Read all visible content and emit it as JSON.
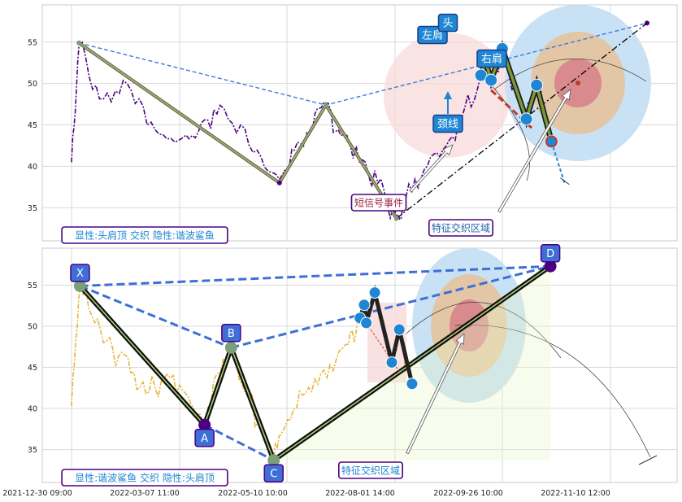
{
  "chart_data": [
    {
      "type": "line",
      "panel": "top",
      "ylim": [
        31,
        59.5
      ],
      "yticks": [
        35,
        40,
        45,
        50,
        55
      ],
      "grid": true,
      "price_color": "#4b0082",
      "pattern_points": [
        {
          "t": 0.8,
          "y": 54.9
        },
        {
          "t": 22.4,
          "y": 38.0
        },
        {
          "t": 27.4,
          "y": 47.4
        },
        {
          "t": 35.0,
          "y": 33.7
        }
      ],
      "trend_line": {
        "from": {
          "t": 0.8,
          "y": 54.9
        },
        "via": {
          "t": 27.4,
          "y": 47.4
        },
        "to": {
          "t": 62.0,
          "y": 57.3
        }
      },
      "neckline_rising": {
        "from": {
          "t": 35.0,
          "y": 33.7
        },
        "to": {
          "t": 62.0,
          "y": 57.3
        }
      },
      "head_shoulders": {
        "points": [
          {
            "t": 44.1,
            "y": 51.0
          },
          {
            "t": 44.6,
            "y": 52.7
          },
          {
            "t": 45.2,
            "y": 50.4
          },
          {
            "t": 46.4,
            "y": 54.2
          },
          {
            "t": 49.0,
            "y": 45.7
          },
          {
            "t": 50.1,
            "y": 49.8
          },
          {
            "t": 51.7,
            "y": 43.0
          }
        ],
        "projection": [
          {
            "t": 51.7,
            "y": 43.0
          },
          {
            "t": 53.1,
            "y": 38.0
          }
        ],
        "neckline": [
          {
            "t": 45.2,
            "y": 49.2
          },
          {
            "t": 49.7,
            "y": 44.5
          }
        ]
      },
      "labels": {
        "left_shoulder": "左肩",
        "head": "头",
        "right_shoulder": "右肩",
        "neckline": "颈线",
        "short_signal": "短信号事件",
        "zone": "特征交织区域",
        "legend": "显性:头肩顶 交织 隐性:谐波鲨鱼"
      },
      "colors": {
        "ellipse_outer": "#c8e1f5",
        "ellipse_mid": "#e2c6a6",
        "ellipse_inner": "#d98a8c",
        "pink_zone": "#f7dada",
        "badge_fill": "#1f86d4"
      }
    },
    {
      "type": "line",
      "panel": "bottom",
      "ylim": [
        31,
        59.5
      ],
      "yticks": [
        35,
        40,
        45,
        50,
        55
      ],
      "grid": true,
      "price_color": "#e8b43a",
      "x_ticks": [
        "2021-12-30 09:00",
        "2022-03-07 11:00",
        "2022-05-10 10:00",
        "2022-08-01 14:00",
        "2022-09-26 10:00",
        "2022-11-10 12:00"
      ],
      "harmonic_points": [
        {
          "name": "X",
          "t": 0.8,
          "y": 54.9
        },
        {
          "name": "A",
          "t": 12.5,
          "y": 38.0
        },
        {
          "name": "B",
          "t": 15.0,
          "y": 47.4
        },
        {
          "name": "C",
          "t": 19.0,
          "y": 33.7
        },
        {
          "name": "D",
          "t": 45.0,
          "y": 57.3
        }
      ],
      "head_shoulders": [
        {
          "t": 27.1,
          "y": 51.0
        },
        {
          "t": 27.5,
          "y": 52.6
        },
        {
          "t": 27.7,
          "y": 50.4
        },
        {
          "t": 28.5,
          "y": 54.1
        },
        {
          "t": 30.1,
          "y": 45.6
        },
        {
          "t": 30.8,
          "y": 49.6
        },
        {
          "t": 32.0,
          "y": 43.0
        }
      ],
      "labels": {
        "zone": "特征交织区域",
        "legend": "显性:谐波鲨鱼 交织 隐性:头肩顶"
      },
      "colors": {
        "badge_fill": "#3e6fd6",
        "pink_zone": "#f7dada"
      }
    }
  ]
}
